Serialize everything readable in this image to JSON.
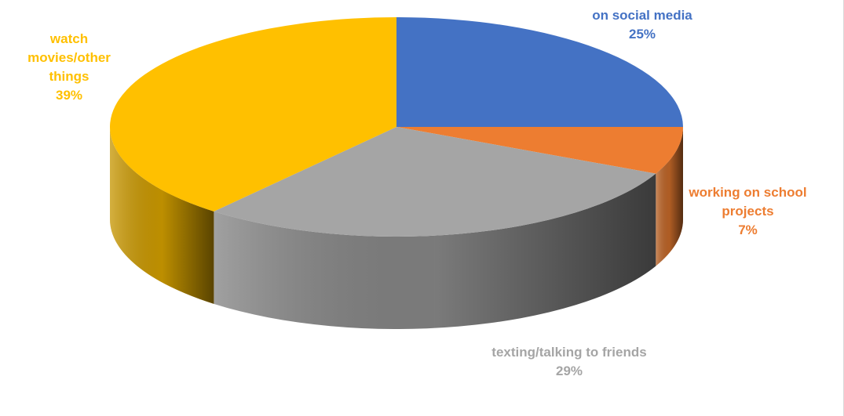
{
  "chart_data": {
    "type": "pie",
    "title": "",
    "style": "3d",
    "legend": "none",
    "slices": [
      {
        "label": "on social media",
        "value": 25,
        "display": "25%",
        "color": "#4472C4"
      },
      {
        "label": "working on school projects",
        "value": 7,
        "display": "7%",
        "color": "#ED7D31"
      },
      {
        "label": "texting/talking to friends",
        "value": 29,
        "display": "29%",
        "color": "#A5A5A5"
      },
      {
        "label": "watch movies/other things",
        "value": 39,
        "display": "39%",
        "color": "#FFC000"
      }
    ]
  }
}
